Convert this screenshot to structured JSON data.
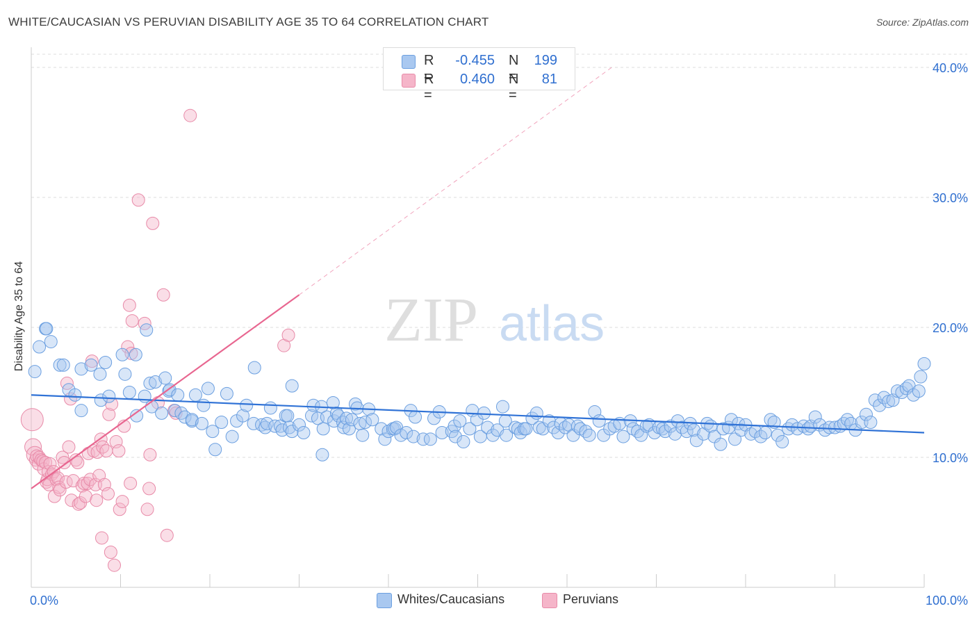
{
  "header": {
    "title": "WHITE/CAUCASIAN VS PERUVIAN DISABILITY AGE 35 TO 64 CORRELATION CHART",
    "source": "Source: ZipAtlas.com"
  },
  "legend": {
    "rows": [
      {
        "r_label": "R =",
        "r_value": "-0.455",
        "n_label": "N =",
        "n_value": "199"
      },
      {
        "r_label": "R =",
        "r_value": "0.460",
        "n_label": "N =",
        "n_value": "81"
      }
    ],
    "series": [
      {
        "name": "Whites/Caucasians"
      },
      {
        "name": "Peruvians"
      }
    ]
  },
  "colors": {
    "blue_fill": "#a9c8f0",
    "blue_stroke": "#6b9fe0",
    "blue_line": "#2f72d6",
    "pink_fill": "#f5b5c9",
    "pink_stroke": "#e88aa8",
    "pink_line": "#e86690",
    "value_text": "#2f6fd0",
    "grid": "#dddddd"
  },
  "watermark": {
    "zip": "ZIP",
    "atlas": "atlas"
  },
  "chart_data": {
    "type": "scatter",
    "title": "WHITE/CAUCASIAN VS PERUVIAN DISABILITY AGE 35 TO 64 CORRELATION CHART",
    "xlabel": "",
    "ylabel": "Disability Age 35 to 64",
    "xlim": [
      0,
      100
    ],
    "ylim": [
      0,
      40
    ],
    "x_tick_labels": [
      "0.0%",
      "100.0%"
    ],
    "y_ticks": [
      10,
      20,
      30,
      40
    ],
    "y_tick_labels": [
      "10.0%",
      "20.0%",
      "30.0%",
      "40.0%"
    ],
    "grid": "horizontal dashed",
    "legend_position": "top-center",
    "series": [
      {
        "name": "Whites/Caucasians",
        "trend": {
          "x": [
            0,
            100
          ],
          "y": [
            14.8,
            11.9
          ]
        },
        "points": [
          [
            0.4,
            16.6
          ],
          [
            0.9,
            18.5
          ],
          [
            1.6,
            19.9
          ],
          [
            1.7,
            19.9
          ],
          [
            2.2,
            18.9
          ],
          [
            3.2,
            17.1
          ],
          [
            3.6,
            17.1
          ],
          [
            4.2,
            15.2
          ],
          [
            4.9,
            14.8
          ],
          [
            5.6,
            16.8
          ],
          [
            5.6,
            13.6
          ],
          [
            6.7,
            17.1
          ],
          [
            7.7,
            16.4
          ],
          [
            7.8,
            14.4
          ],
          [
            8.3,
            17.3
          ],
          [
            8.7,
            14.7
          ],
          [
            10.2,
            17.9
          ],
          [
            10.5,
            16.4
          ],
          [
            11.0,
            15.0
          ],
          [
            11.7,
            17.9
          ],
          [
            11.8,
            13.2
          ],
          [
            12.7,
            14.7
          ],
          [
            12.9,
            19.8
          ],
          [
            13.3,
            15.7
          ],
          [
            13.5,
            13.9
          ],
          [
            13.9,
            15.8
          ],
          [
            14.6,
            13.4
          ],
          [
            15.0,
            16.1
          ],
          [
            15.4,
            15.1
          ],
          [
            15.5,
            15.2
          ],
          [
            16.1,
            13.6
          ],
          [
            16.4,
            14.8
          ],
          [
            16.8,
            13.4
          ],
          [
            17.2,
            13.1
          ],
          [
            18.0,
            12.8
          ],
          [
            18.0,
            12.9
          ],
          [
            18.4,
            14.8
          ],
          [
            19.1,
            12.6
          ],
          [
            19.3,
            14.0
          ],
          [
            19.8,
            15.3
          ],
          [
            20.3,
            12.0
          ],
          [
            20.6,
            10.6
          ],
          [
            21.3,
            12.7
          ],
          [
            21.9,
            14.9
          ],
          [
            22.5,
            11.6
          ],
          [
            23.0,
            12.8
          ],
          [
            23.7,
            13.2
          ],
          [
            24.1,
            14.0
          ],
          [
            24.9,
            12.6
          ],
          [
            25.0,
            16.9
          ],
          [
            25.8,
            12.5
          ],
          [
            26.2,
            12.3
          ],
          [
            26.4,
            12.6
          ],
          [
            26.8,
            13.8
          ],
          [
            27.3,
            12.4
          ],
          [
            27.9,
            12.4
          ],
          [
            28.1,
            12.1
          ],
          [
            28.5,
            13.2
          ],
          [
            28.7,
            13.2
          ],
          [
            28.9,
            12.3
          ],
          [
            29.2,
            12.0
          ],
          [
            29.2,
            15.5
          ],
          [
            30.0,
            12.5
          ],
          [
            30.5,
            11.9
          ],
          [
            31.4,
            13.2
          ],
          [
            31.6,
            14.0
          ],
          [
            32.1,
            13.0
          ],
          [
            32.5,
            13.9
          ],
          [
            32.6,
            10.2
          ],
          [
            32.7,
            12.2
          ],
          [
            33.1,
            13.1
          ],
          [
            33.8,
            14.2
          ],
          [
            33.9,
            12.8
          ],
          [
            34.2,
            13.4
          ],
          [
            34.4,
            13.2
          ],
          [
            34.9,
            12.7
          ],
          [
            35.0,
            12.3
          ],
          [
            35.3,
            13.0
          ],
          [
            35.6,
            12.2
          ],
          [
            35.9,
            12.9
          ],
          [
            36.3,
            14.1
          ],
          [
            36.5,
            13.8
          ],
          [
            36.8,
            12.6
          ],
          [
            37.1,
            11.7
          ],
          [
            37.4,
            12.7
          ],
          [
            37.8,
            13.7
          ],
          [
            38.2,
            12.9
          ],
          [
            39.2,
            12.2
          ],
          [
            39.6,
            11.4
          ],
          [
            40.0,
            12.0
          ],
          [
            40.5,
            12.2
          ],
          [
            40.7,
            12.2
          ],
          [
            40.9,
            12.3
          ],
          [
            41.4,
            11.7
          ],
          [
            42.0,
            11.9
          ],
          [
            42.5,
            13.6
          ],
          [
            42.8,
            11.6
          ],
          [
            43.0,
            13.1
          ],
          [
            43.9,
            11.4
          ],
          [
            44.7,
            11.4
          ],
          [
            45.1,
            13.0
          ],
          [
            45.7,
            13.5
          ],
          [
            46.0,
            11.9
          ],
          [
            47.1,
            12.0
          ],
          [
            47.4,
            12.4
          ],
          [
            47.5,
            11.6
          ],
          [
            48.0,
            12.8
          ],
          [
            48.4,
            11.2
          ],
          [
            49.1,
            12.2
          ],
          [
            49.4,
            13.6
          ],
          [
            49.9,
            12.9
          ],
          [
            50.3,
            11.6
          ],
          [
            50.7,
            13.4
          ],
          [
            51.1,
            12.3
          ],
          [
            51.7,
            11.7
          ],
          [
            52.2,
            12.1
          ],
          [
            52.8,
            13.9
          ],
          [
            53.1,
            12.8
          ],
          [
            53.2,
            11.7
          ],
          [
            54.2,
            12.3
          ],
          [
            54.5,
            12.2
          ],
          [
            54.8,
            11.9
          ],
          [
            55.2,
            12.2
          ],
          [
            55.4,
            12.2
          ],
          [
            56.1,
            13.0
          ],
          [
            56.6,
            13.4
          ],
          [
            56.9,
            12.3
          ],
          [
            57.3,
            12.2
          ],
          [
            58.0,
            12.8
          ],
          [
            58.5,
            12.3
          ],
          [
            59.0,
            11.9
          ],
          [
            59.3,
            12.6
          ],
          [
            59.8,
            12.3
          ],
          [
            60.2,
            12.5
          ],
          [
            60.7,
            11.7
          ],
          [
            61.2,
            12.4
          ],
          [
            61.5,
            12.2
          ],
          [
            62.1,
            12.0
          ],
          [
            62.5,
            11.7
          ],
          [
            63.1,
            13.5
          ],
          [
            63.6,
            12.8
          ],
          [
            64.1,
            11.7
          ],
          [
            64.8,
            12.2
          ],
          [
            65.3,
            12.4
          ],
          [
            65.9,
            12.6
          ],
          [
            66.3,
            11.6
          ],
          [
            67.1,
            12.8
          ],
          [
            67.4,
            12.2
          ],
          [
            67.9,
            12.0
          ],
          [
            68.3,
            11.7
          ],
          [
            68.9,
            12.4
          ],
          [
            69.2,
            12.5
          ],
          [
            69.8,
            11.9
          ],
          [
            70.3,
            12.3
          ],
          [
            70.7,
            12.2
          ],
          [
            71.0,
            12.0
          ],
          [
            71.6,
            12.4
          ],
          [
            72.1,
            11.8
          ],
          [
            72.4,
            12.8
          ],
          [
            72.9,
            12.3
          ],
          [
            73.4,
            12.0
          ],
          [
            73.8,
            12.6
          ],
          [
            74.2,
            12.1
          ],
          [
            74.5,
            11.3
          ],
          [
            75.3,
            11.8
          ],
          [
            75.7,
            12.6
          ],
          [
            76.1,
            12.4
          ],
          [
            76.5,
            11.6
          ],
          [
            77.2,
            11.0
          ],
          [
            77.5,
            12.2
          ],
          [
            78.1,
            12.3
          ],
          [
            78.4,
            12.9
          ],
          [
            78.8,
            11.4
          ],
          [
            79.2,
            12.6
          ],
          [
            79.5,
            12.1
          ],
          [
            80.0,
            12.5
          ],
          [
            80.6,
            11.8
          ],
          [
            81.1,
            12.0
          ],
          [
            81.7,
            11.6
          ],
          [
            82.2,
            11.9
          ],
          [
            82.8,
            12.9
          ],
          [
            83.2,
            12.7
          ],
          [
            83.6,
            11.7
          ],
          [
            84.1,
            11.2
          ],
          [
            84.8,
            12.2
          ],
          [
            85.2,
            12.5
          ],
          [
            85.8,
            12.2
          ],
          [
            86.5,
            12.4
          ],
          [
            87.0,
            12.2
          ],
          [
            87.3,
            12.4
          ],
          [
            87.8,
            13.1
          ],
          [
            88.3,
            12.5
          ],
          [
            88.9,
            12.1
          ],
          [
            89.4,
            12.3
          ],
          [
            90.0,
            12.3
          ],
          [
            90.6,
            12.4
          ],
          [
            91.0,
            12.6
          ],
          [
            91.4,
            12.9
          ],
          [
            91.8,
            12.6
          ],
          [
            92.3,
            12.1
          ],
          [
            93.0,
            12.7
          ],
          [
            93.5,
            13.3
          ],
          [
            94.0,
            12.7
          ],
          [
            94.5,
            14.4
          ],
          [
            95.0,
            14.0
          ],
          [
            95.5,
            14.6
          ],
          [
            96.0,
            14.3
          ],
          [
            96.5,
            14.4
          ],
          [
            97.0,
            15.1
          ],
          [
            97.5,
            15.0
          ],
          [
            98.0,
            15.3
          ],
          [
            98.3,
            15.5
          ],
          [
            98.8,
            14.8
          ],
          [
            99.4,
            15.1
          ],
          [
            99.6,
            16.2
          ],
          [
            100.0,
            17.2
          ]
        ]
      },
      {
        "name": "Peruvians",
        "trend": {
          "x": [
            0,
            30
          ],
          "y": [
            7.6,
            22.5
          ]
        },
        "trend_extension": {
          "x": [
            30,
            65
          ],
          "y": [
            22.5,
            40.0
          ]
        },
        "points": [
          [
            0.1,
            12.9
          ],
          [
            0.2,
            10.8
          ],
          [
            0.4,
            10.2
          ],
          [
            0.5,
            9.8
          ],
          [
            0.6,
            10.1
          ],
          [
            0.8,
            9.5
          ],
          [
            0.9,
            10.0
          ],
          [
            1.1,
            9.8
          ],
          [
            1.3,
            9.7
          ],
          [
            1.4,
            9.1
          ],
          [
            1.6,
            9.6
          ],
          [
            1.7,
            8.1
          ],
          [
            1.8,
            8.3
          ],
          [
            1.9,
            8.9
          ],
          [
            2.0,
            7.9
          ],
          [
            2.1,
            9.5
          ],
          [
            2.3,
            8.7
          ],
          [
            2.5,
            8.9
          ],
          [
            2.6,
            7.0
          ],
          [
            2.8,
            8.3
          ],
          [
            3.0,
            8.4
          ],
          [
            3.1,
            7.7
          ],
          [
            3.2,
            7.5
          ],
          [
            3.5,
            10.0
          ],
          [
            3.7,
            9.6
          ],
          [
            3.9,
            8.1
          ],
          [
            4.0,
            15.7
          ],
          [
            4.2,
            10.8
          ],
          [
            4.4,
            14.5
          ],
          [
            4.5,
            6.7
          ],
          [
            4.7,
            8.2
          ],
          [
            5.0,
            9.8
          ],
          [
            5.2,
            9.6
          ],
          [
            5.3,
            6.4
          ],
          [
            5.5,
            6.5
          ],
          [
            5.7,
            7.8
          ],
          [
            5.9,
            8.0
          ],
          [
            6.1,
            7.0
          ],
          [
            6.3,
            8.0
          ],
          [
            6.4,
            10.3
          ],
          [
            6.6,
            8.3
          ],
          [
            6.8,
            17.4
          ],
          [
            7.0,
            10.5
          ],
          [
            7.2,
            7.9
          ],
          [
            7.3,
            6.7
          ],
          [
            7.4,
            10.4
          ],
          [
            7.6,
            8.6
          ],
          [
            7.8,
            11.4
          ],
          [
            7.9,
            3.8
          ],
          [
            8.0,
            10.8
          ],
          [
            8.2,
            7.9
          ],
          [
            8.4,
            10.5
          ],
          [
            8.6,
            7.2
          ],
          [
            8.7,
            13.3
          ],
          [
            8.9,
            2.7
          ],
          [
            9.0,
            14.1
          ],
          [
            9.3,
            1.7
          ],
          [
            9.5,
            11.2
          ],
          [
            9.8,
            10.5
          ],
          [
            9.9,
            6.0
          ],
          [
            10.2,
            6.6
          ],
          [
            10.4,
            12.4
          ],
          [
            10.8,
            18.5
          ],
          [
            11.2,
            18.0
          ],
          [
            11.0,
            21.7
          ],
          [
            11.3,
            20.5
          ],
          [
            11.1,
            8.0
          ],
          [
            12.0,
            29.8
          ],
          [
            12.7,
            20.3
          ],
          [
            13.0,
            6.0
          ],
          [
            13.2,
            7.6
          ],
          [
            13.3,
            10.2
          ],
          [
            13.6,
            28.0
          ],
          [
            14.2,
            14.2
          ],
          [
            14.8,
            22.5
          ],
          [
            15.2,
            4.0
          ],
          [
            16.0,
            13.6
          ],
          [
            16.2,
            13.4
          ],
          [
            17.8,
            36.3
          ],
          [
            28.3,
            18.6
          ],
          [
            28.8,
            19.4
          ]
        ]
      }
    ]
  }
}
